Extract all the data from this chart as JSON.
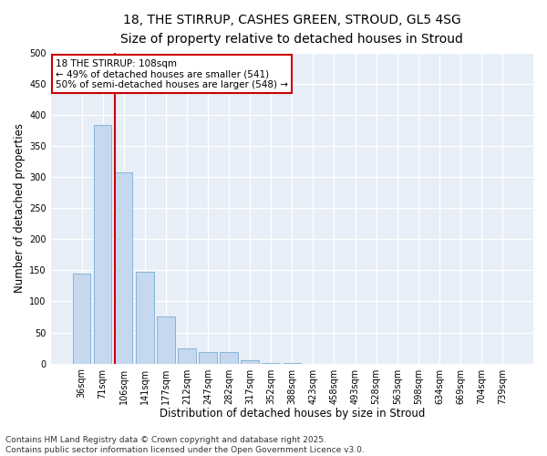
{
  "title_line1": "18, THE STIRRUP, CASHES GREEN, STROUD, GL5 4SG",
  "title_line2": "Size of property relative to detached houses in Stroud",
  "xlabel": "Distribution of detached houses by size in Stroud",
  "ylabel": "Number of detached properties",
  "categories": [
    "36sqm",
    "71sqm",
    "106sqm",
    "141sqm",
    "177sqm",
    "212sqm",
    "247sqm",
    "282sqm",
    "317sqm",
    "352sqm",
    "388sqm",
    "423sqm",
    "458sqm",
    "493sqm",
    "528sqm",
    "563sqm",
    "598sqm",
    "634sqm",
    "669sqm",
    "704sqm",
    "739sqm"
  ],
  "values": [
    145,
    383,
    308,
    148,
    75,
    25,
    18,
    18,
    5,
    1,
    1,
    0,
    0,
    0,
    0,
    0,
    0,
    0,
    0,
    0,
    0
  ],
  "bar_color": "#c5d8ee",
  "bar_edge_color": "#7aadd4",
  "vline_color": "#cc0000",
  "annotation_text": "18 THE STIRRUP: 108sqm\n← 49% of detached houses are smaller (541)\n50% of semi-detached houses are larger (548) →",
  "annotation_box_color": "#cc0000",
  "ylim": [
    0,
    500
  ],
  "yticks": [
    0,
    50,
    100,
    150,
    200,
    250,
    300,
    350,
    400,
    450,
    500
  ],
  "background_color": "#e8eef8",
  "footer_text": "Contains HM Land Registry data © Crown copyright and database right 2025.\nContains public sector information licensed under the Open Government Licence v3.0.",
  "title_fontsize": 10,
  "subtitle_fontsize": 9,
  "axis_label_fontsize": 8.5,
  "tick_fontsize": 7,
  "footer_fontsize": 6.5,
  "annotation_fontsize": 7.5
}
